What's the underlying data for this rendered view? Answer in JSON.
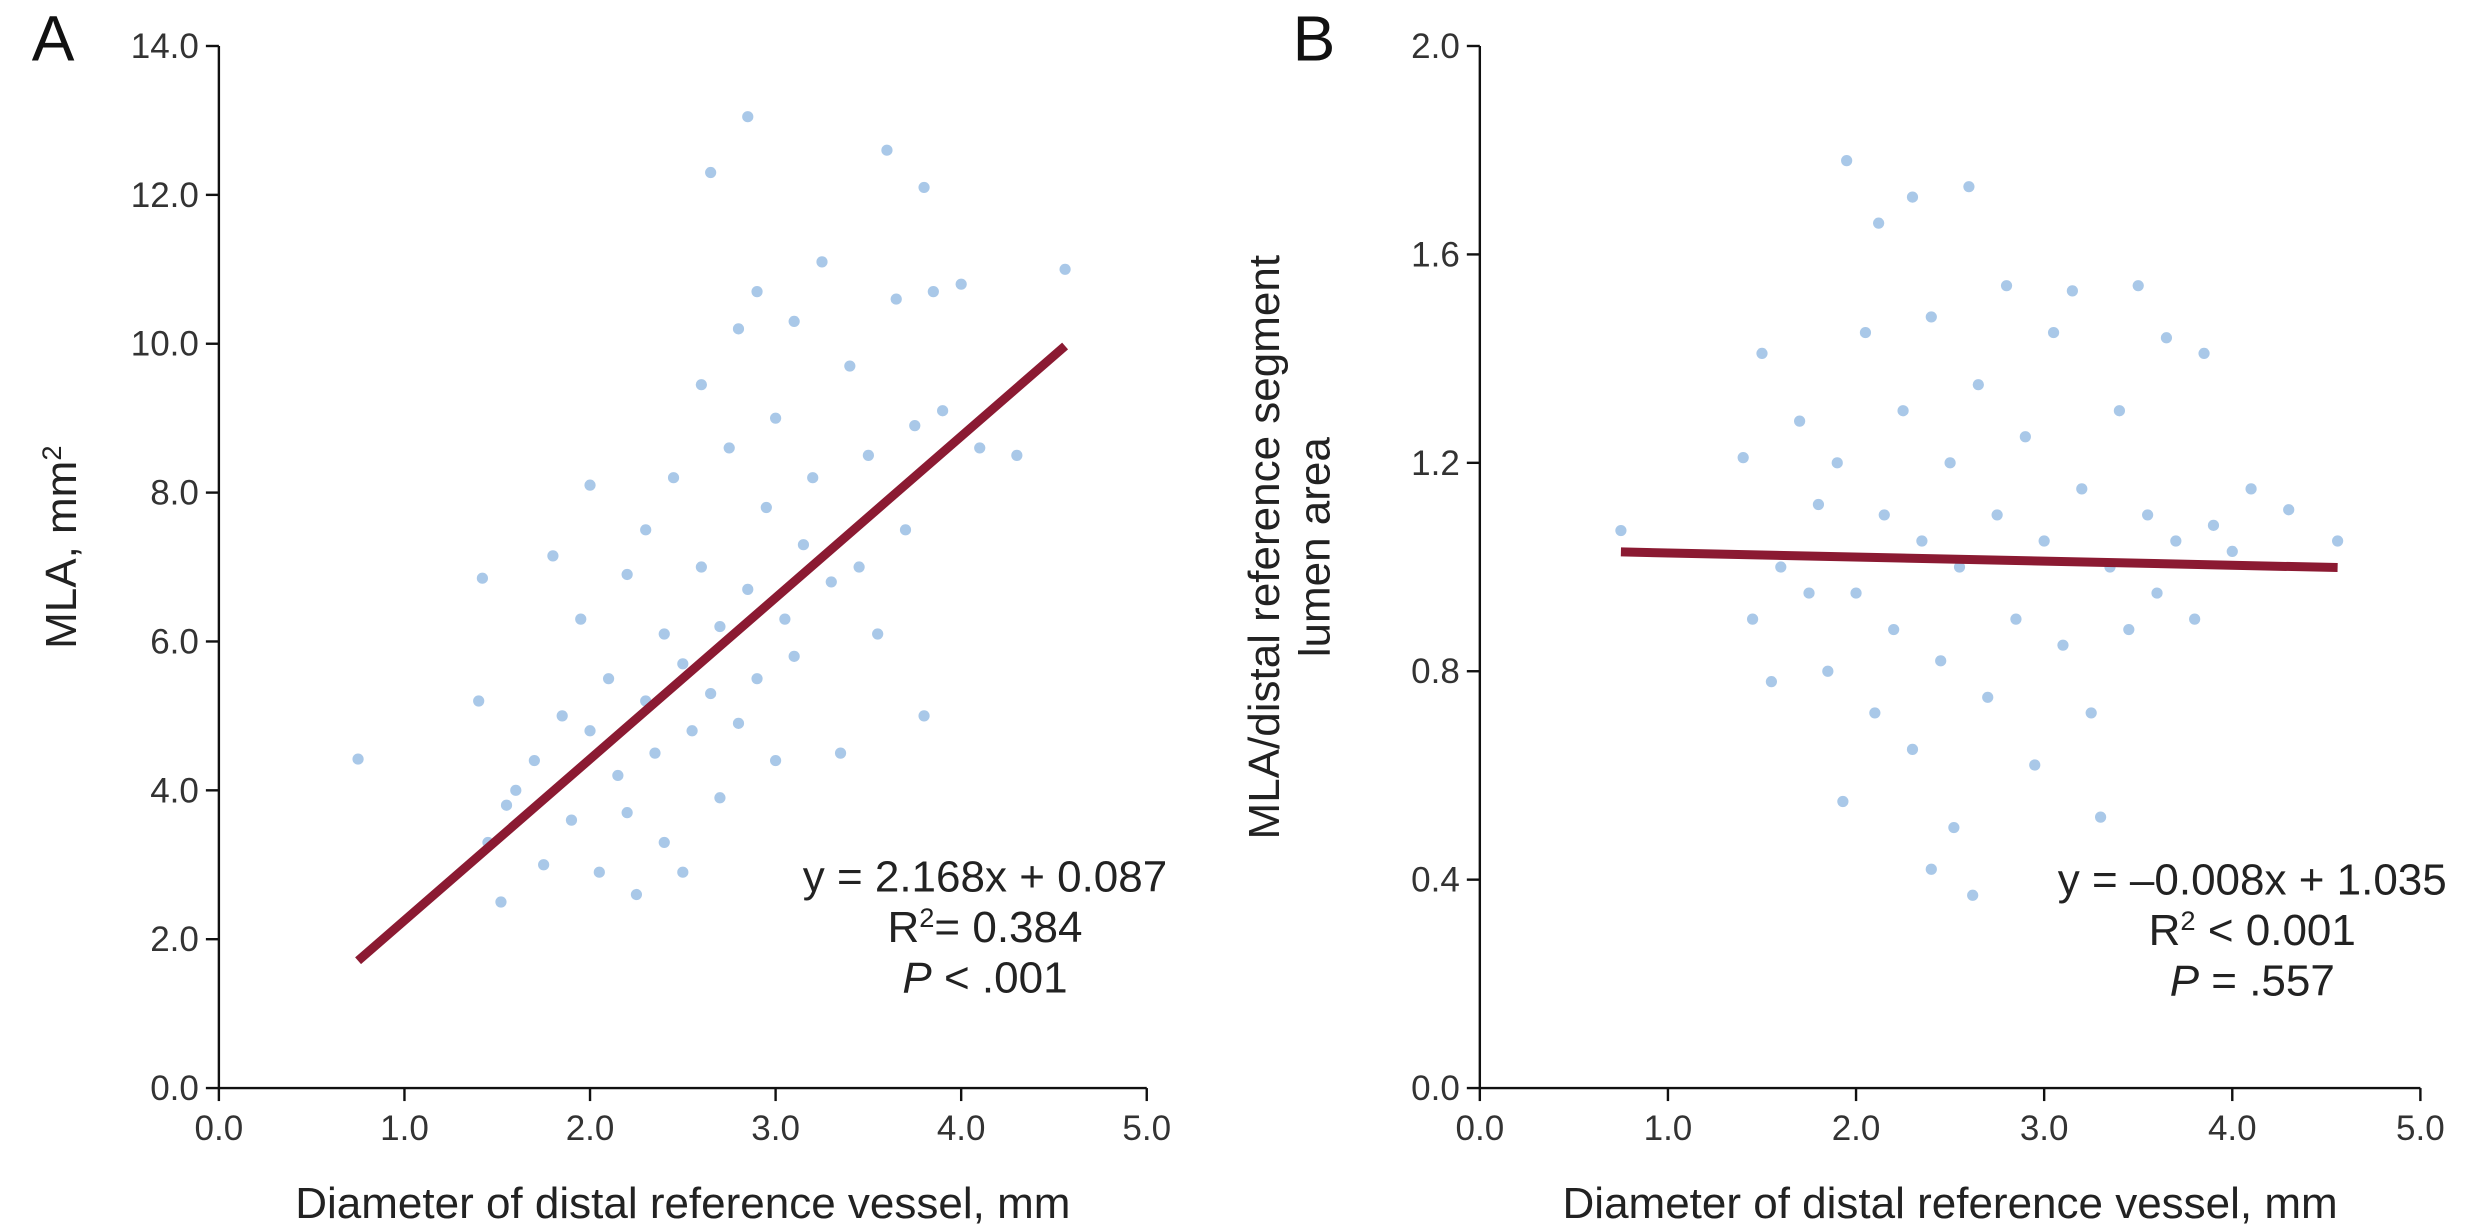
{
  "chart_data": [
    {
      "type": "scatter",
      "panel_label": "A",
      "xlabel": "Diameter of distal reference vessel, mm",
      "ylabel": [
        [
          {
            "text": "MLA, mm"
          },
          {
            "text": "2",
            "sup": true
          }
        ]
      ],
      "xlim": [
        0,
        5
      ],
      "ylim": [
        0,
        14
      ],
      "xticks": [
        {
          "value": 0,
          "label": "0.0"
        },
        {
          "value": 1,
          "label": "1.0"
        },
        {
          "value": 2,
          "label": "2.0"
        },
        {
          "value": 3,
          "label": "3.0"
        },
        {
          "value": 4,
          "label": "4.0"
        },
        {
          "value": 5,
          "label": "5.0"
        }
      ],
      "yticks": [
        {
          "value": 0,
          "label": "0.0"
        },
        {
          "value": 2,
          "label": "2.0"
        },
        {
          "value": 4,
          "label": "4.0"
        },
        {
          "value": 6,
          "label": "6.0"
        },
        {
          "value": 8,
          "label": "8.0"
        },
        {
          "value": 10,
          "label": "10.0"
        },
        {
          "value": 12,
          "label": "12.0"
        },
        {
          "value": 14,
          "label": "14.0"
        }
      ],
      "point_color": "#a9c8e8",
      "line_color": "#8b1a32",
      "points": {
        "x": [
          0.75,
          1.4,
          1.42,
          1.45,
          1.52,
          1.55,
          1.6,
          1.7,
          1.75,
          1.8,
          1.85,
          1.9,
          1.95,
          2.0,
          2.0,
          2.05,
          2.1,
          2.15,
          2.2,
          2.2,
          2.25,
          2.3,
          2.3,
          2.35,
          2.4,
          2.4,
          2.45,
          2.5,
          2.5,
          2.55,
          2.6,
          2.6,
          2.65,
          2.65,
          2.7,
          2.7,
          2.75,
          2.8,
          2.8,
          2.85,
          2.85,
          2.9,
          2.9,
          2.95,
          3.0,
          3.0,
          3.05,
          3.1,
          3.1,
          3.15,
          3.2,
          3.25,
          3.3,
          3.35,
          3.4,
          3.45,
          3.5,
          3.55,
          3.6,
          3.65,
          3.7,
          3.75,
          3.8,
          3.8,
          3.85,
          3.9,
          4.0,
          4.1,
          4.3,
          4.56
        ],
        "y": [
          4.42,
          5.2,
          6.85,
          3.3,
          2.5,
          3.8,
          4.0,
          4.4,
          3.0,
          7.15,
          5.0,
          3.6,
          6.3,
          8.1,
          4.8,
          2.9,
          5.5,
          4.2,
          3.7,
          6.9,
          2.6,
          7.5,
          5.2,
          4.5,
          3.3,
          6.1,
          8.2,
          5.7,
          2.9,
          4.8,
          7.0,
          9.45,
          12.3,
          5.3,
          6.2,
          3.9,
          8.6,
          10.2,
          4.9,
          13.05,
          6.7,
          5.5,
          10.7,
          7.8,
          4.4,
          9.0,
          6.3,
          10.3,
          5.8,
          7.3,
          8.2,
          11.1,
          6.8,
          4.5,
          9.7,
          7.0,
          8.5,
          6.1,
          12.6,
          10.6,
          7.5,
          8.9,
          12.1,
          5.0,
          10.7,
          9.1,
          10.8,
          8.6,
          8.5,
          11.0
        ]
      },
      "fit": {
        "x": [
          0.75,
          4.56
        ],
        "y": [
          1.71,
          9.97
        ]
      },
      "annotation": [
        [
          {
            "text": "y = 2.168x + 0.087"
          }
        ],
        [
          {
            "text": "R"
          },
          {
            "text": "2",
            "sup": true
          },
          {
            "text": "= 0.384"
          }
        ],
        [
          {
            "text": "P",
            "italic": true
          },
          {
            "text": " < .001"
          }
        ]
      ]
    },
    {
      "type": "scatter",
      "panel_label": "B",
      "xlabel": "Diameter of distal reference vessel, mm",
      "ylabel": [
        [
          {
            "text": "MLA/distal reference segment"
          }
        ],
        [
          {
            "text": "lumen area"
          }
        ]
      ],
      "xlim": [
        0,
        5
      ],
      "ylim": [
        0,
        2
      ],
      "xticks": [
        {
          "value": 0,
          "label": "0.0"
        },
        {
          "value": 1,
          "label": "1.0"
        },
        {
          "value": 2,
          "label": "2.0"
        },
        {
          "value": 3,
          "label": "3.0"
        },
        {
          "value": 4,
          "label": "4.0"
        },
        {
          "value": 5,
          "label": "5.0"
        }
      ],
      "yticks": [
        {
          "value": 0,
          "label": "0.0"
        },
        {
          "value": 0.4,
          "label": "0.4"
        },
        {
          "value": 0.8,
          "label": "0.8"
        },
        {
          "value": 1.2,
          "label": "1.2"
        },
        {
          "value": 1.6,
          "label": "1.6"
        },
        {
          "value": 2,
          "label": "2.0"
        }
      ],
      "point_color": "#a9c8e8",
      "line_color": "#8b1a32",
      "points": {
        "x": [
          0.75,
          1.4,
          1.45,
          1.5,
          1.55,
          1.6,
          1.7,
          1.75,
          1.8,
          1.85,
          1.9,
          1.93,
          1.95,
          2.0,
          2.05,
          2.1,
          2.12,
          2.15,
          2.2,
          2.25,
          2.3,
          2.3,
          2.35,
          2.4,
          2.4,
          2.45,
          2.5,
          2.52,
          2.55,
          2.6,
          2.62,
          2.65,
          2.7,
          2.75,
          2.8,
          2.85,
          2.9,
          2.95,
          3.0,
          3.05,
          3.1,
          3.15,
          3.2,
          3.25,
          3.3,
          3.35,
          3.4,
          3.45,
          3.5,
          3.55,
          3.6,
          3.65,
          3.7,
          3.8,
          3.85,
          3.9,
          4.0,
          4.1,
          4.3,
          4.56
        ],
        "y": [
          1.07,
          1.21,
          0.9,
          1.41,
          0.78,
          1.0,
          1.28,
          0.95,
          1.12,
          0.8,
          1.2,
          0.55,
          1.78,
          0.95,
          1.45,
          0.72,
          1.66,
          1.1,
          0.88,
          1.3,
          1.71,
          0.65,
          1.05,
          0.42,
          1.48,
          0.82,
          1.2,
          0.5,
          1.0,
          1.73,
          0.37,
          1.35,
          0.75,
          1.1,
          1.54,
          0.9,
          1.25,
          0.62,
          1.05,
          1.45,
          0.85,
          1.53,
          1.15,
          0.72,
          0.52,
          1.0,
          1.3,
          0.88,
          1.54,
          1.1,
          0.95,
          1.44,
          1.05,
          0.9,
          1.41,
          1.08,
          1.03,
          1.15,
          1.11,
          1.05
        ]
      },
      "fit": {
        "x": [
          0.75,
          4.56
        ],
        "y": [
          1.029,
          0.999
        ]
      },
      "annotation": [
        [
          {
            "text": "y = –0.008x + 1.035"
          }
        ],
        [
          {
            "text": "R"
          },
          {
            "text": "2",
            "sup": true
          },
          {
            "text": " < 0.001"
          }
        ],
        [
          {
            "text": "P",
            "italic": true
          },
          {
            "text": " = .557"
          }
        ]
      ]
    }
  ]
}
